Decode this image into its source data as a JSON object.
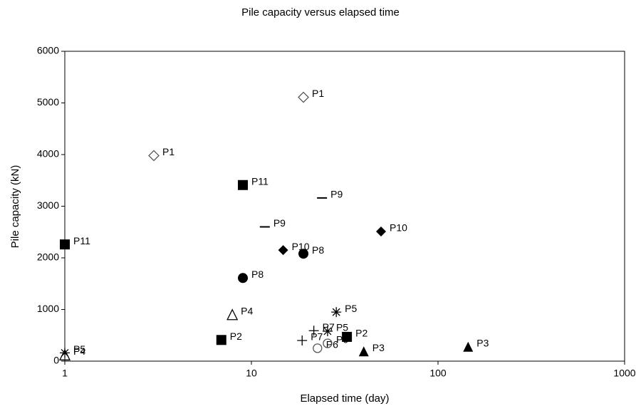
{
  "chart_data": {
    "type": "scatter",
    "title": "Pile capacity versus elapsed time",
    "x_label": "Elapsed time (day)",
    "y_label": "Pile capacity (kN)",
    "x_scale": "log",
    "xlim": [
      1,
      1000
    ],
    "xticks": [
      1,
      10,
      100,
      1000
    ],
    "ylim": [
      0,
      6000
    ],
    "yticks": [
      0,
      1000,
      2000,
      3000,
      4000,
      5000,
      6000
    ],
    "grid": false,
    "series": [
      {
        "name": "P1",
        "marker": "diamond-open",
        "color": "#555555",
        "x": [
          3,
          19
        ],
        "values": [
          3980,
          5110
        ]
      },
      {
        "name": "P2",
        "marker": "square",
        "color": "#000000",
        "x": [
          6.9,
          32.5
        ],
        "values": [
          410,
          470
        ]
      },
      {
        "name": "P3",
        "marker": "triangle",
        "color": "#000000",
        "x": [
          40,
          145
        ],
        "values": [
          190,
          280
        ]
      },
      {
        "name": "P4",
        "marker": "triangle-open",
        "color": "#000000",
        "x": [
          1,
          7.9
        ],
        "values": [
          120,
          900
        ]
      },
      {
        "name": "P5",
        "marker": "asterisk",
        "color": "#000000",
        "x": [
          1,
          28.5,
          25.6
        ],
        "values": [
          160,
          950,
          580
        ]
      },
      {
        "name": "P6",
        "marker": "circle-open",
        "color": "#555555",
        "x": [
          22.6,
          25.6
        ],
        "values": [
          250,
          345
        ]
      },
      {
        "name": "P7",
        "marker": "plus",
        "color": "#000000",
        "x": [
          18.7,
          21.6
        ],
        "values": [
          400,
          590
        ]
      },
      {
        "name": "P8",
        "marker": "circle",
        "color": "#000000",
        "x": [
          9,
          19
        ],
        "values": [
          1610,
          2080
        ]
      },
      {
        "name": "P9",
        "marker": "dash",
        "color": "#000000",
        "x": [
          11.8,
          23.9
        ],
        "values": [
          2600,
          3160
        ]
      },
      {
        "name": "P10",
        "marker": "diamond",
        "color": "#000000",
        "x": [
          14.8,
          49.5
        ],
        "values": [
          2150,
          2510
        ]
      },
      {
        "name": "P11",
        "marker": "square",
        "color": "#000000",
        "x": [
          1,
          9
        ],
        "values": [
          2260,
          3410
        ]
      }
    ]
  }
}
